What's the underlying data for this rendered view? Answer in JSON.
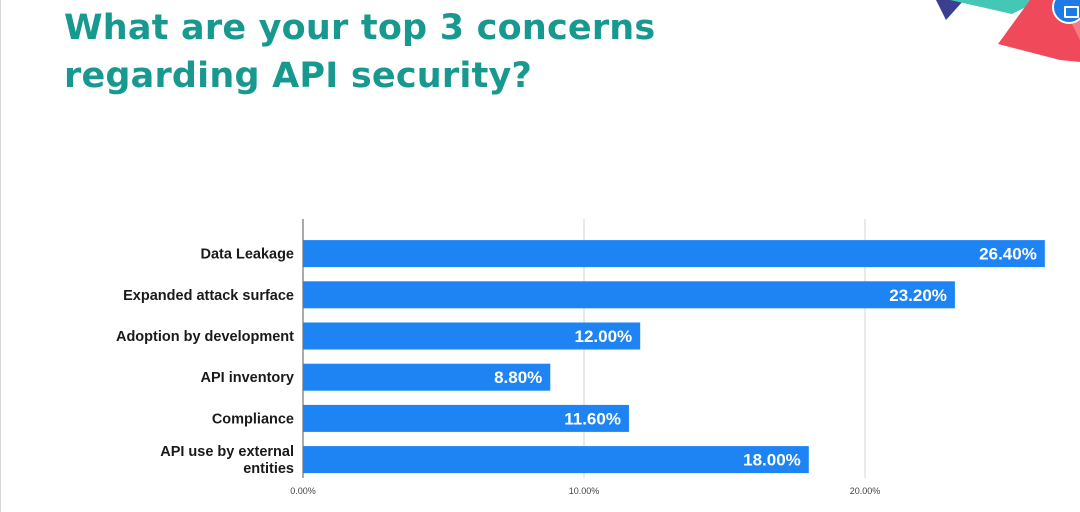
{
  "title_line1": "What are your top 3 concerns",
  "title_line2": "regarding API security?",
  "colors": {
    "title": "#17998f",
    "bar": "#1e84f3"
  },
  "icons": {
    "corner": "screen-share-icon"
  },
  "chart_data": {
    "type": "bar",
    "orientation": "horizontal",
    "title": "What are your top 3 concerns regarding API security?",
    "categories": [
      [
        "Data Leakage"
      ],
      [
        "Expanded attack surface"
      ],
      [
        "Adoption by development"
      ],
      [
        "API inventory"
      ],
      [
        "Compliance"
      ],
      [
        "API use by external",
        "entities"
      ]
    ],
    "values": [
      26.4,
      23.2,
      12.0,
      8.8,
      11.6,
      18.0
    ],
    "value_labels": [
      "26.40%",
      "23.20%",
      "12.00%",
      "8.80%",
      "11.60%",
      "18.00%"
    ],
    "xticks": [
      0,
      10,
      20
    ],
    "xtick_labels": [
      "0.00%",
      "10.00%",
      "20.00%"
    ],
    "xlim": [
      0,
      26.6
    ],
    "grid": true,
    "legend": "none"
  }
}
